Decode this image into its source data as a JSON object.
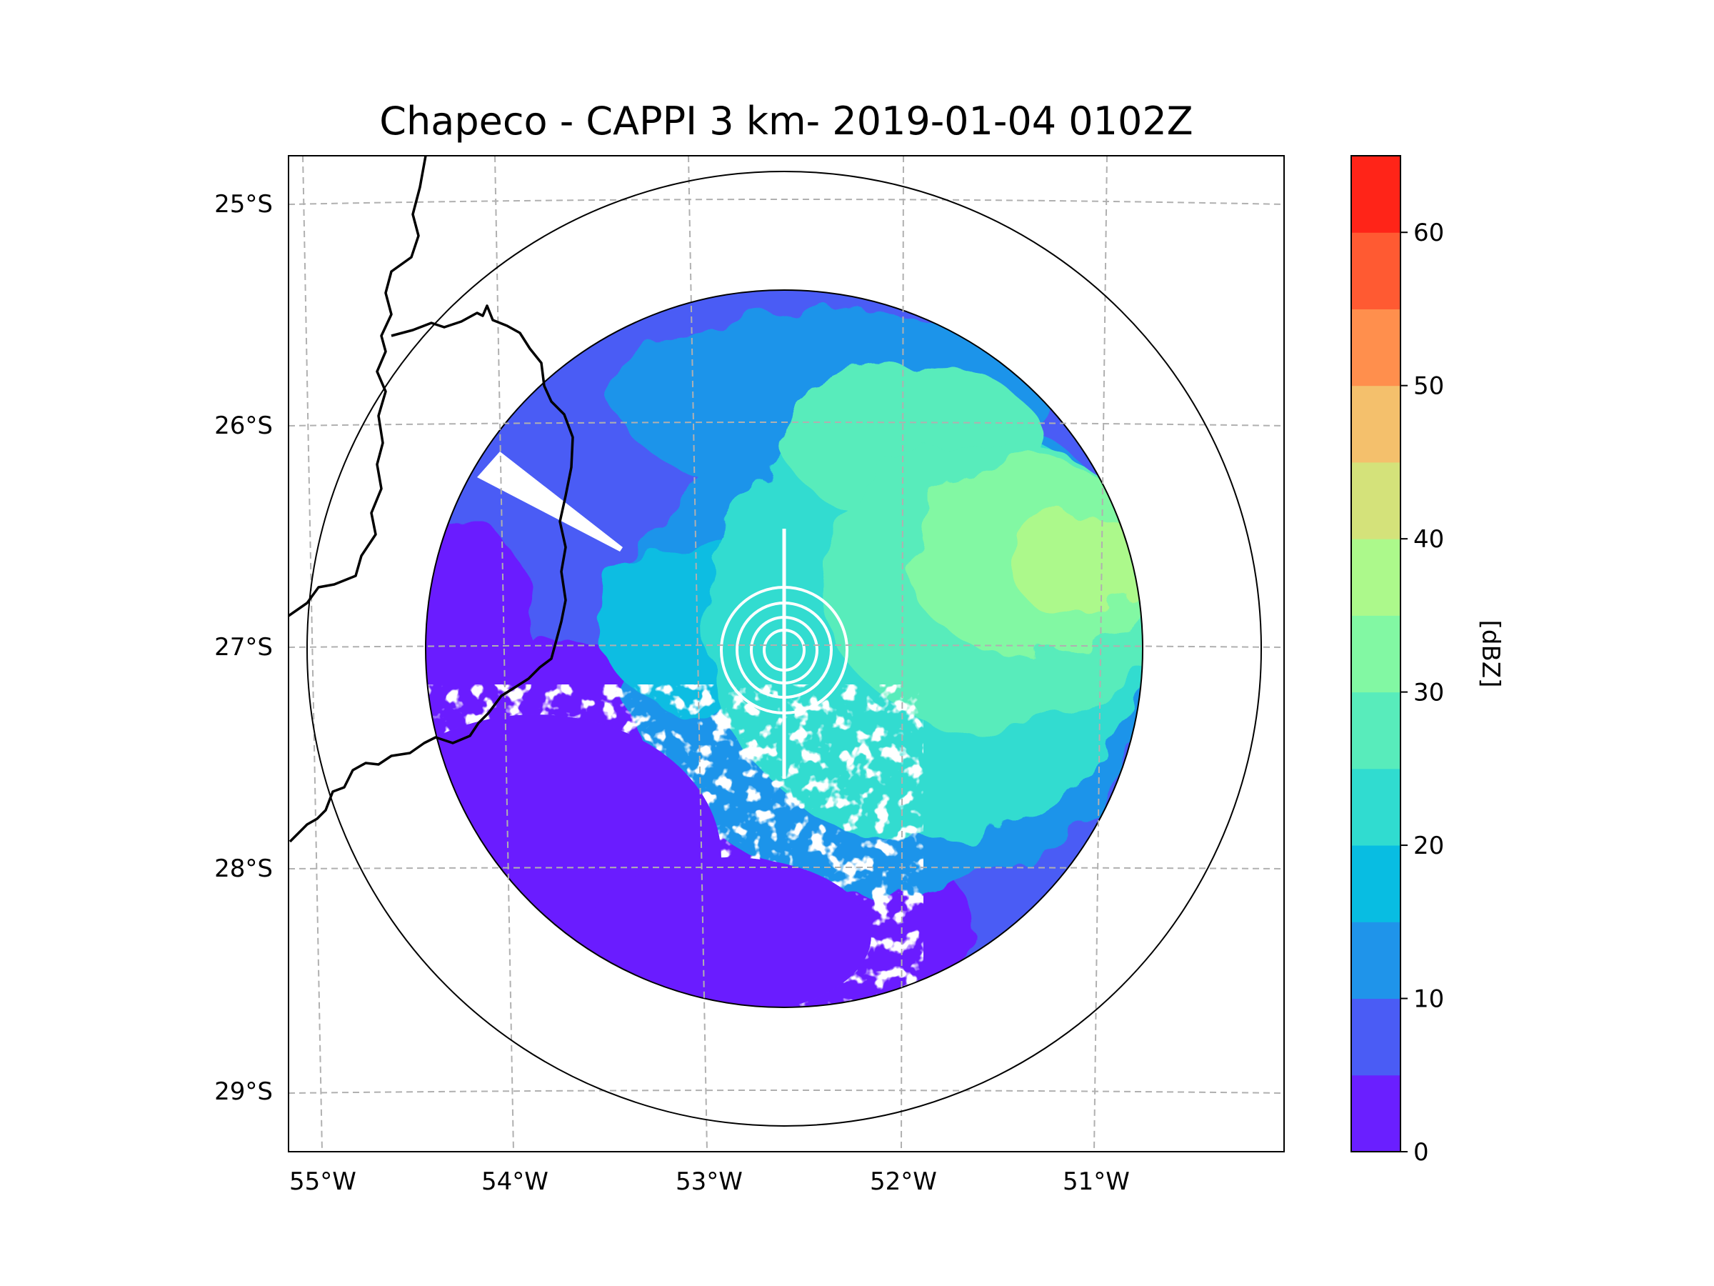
{
  "chart_data": {
    "type": "radar_map",
    "title": "Chapeco - CAPPI 3 km- 2019-01-04 0102Z",
    "projection": "lat-lon map with dashed graticule",
    "extent": {
      "lon": [
        -55.18,
        -50.05
      ],
      "lat": [
        -29.28,
        -24.78
      ]
    },
    "x_ticks": [
      {
        "value": -55,
        "label": "55°W"
      },
      {
        "value": -54,
        "label": "54°W"
      },
      {
        "value": -53,
        "label": "53°W"
      },
      {
        "value": -52,
        "label": "52°W"
      },
      {
        "value": -51,
        "label": "51°W"
      }
    ],
    "y_ticks": [
      {
        "value": -25,
        "label": "25°S"
      },
      {
        "value": -26,
        "label": "26°S"
      },
      {
        "value": -27,
        "label": "27°S"
      },
      {
        "value": -28,
        "label": "28°S"
      },
      {
        "value": -29,
        "label": "29°S"
      }
    ],
    "radar_site": {
      "name": "Chapeco",
      "lon": -52.6,
      "lat": -27.03
    },
    "range_rings_deg": [
      1.85,
      2.47
    ],
    "product": "CAPPI 3 km",
    "datetime": "2019-01-04 0102Z",
    "colorbar": {
      "label": "[dBZ]",
      "min": 0,
      "max": 65,
      "step": 5,
      "tick_values": [
        0,
        10,
        20,
        30,
        40,
        50,
        60
      ],
      "tick_labels": [
        "0",
        "10",
        "20",
        "30",
        "40",
        "50",
        "60"
      ],
      "colors": [
        "#6a1fff",
        "#4a5cf5",
        "#1f94ea",
        "#08bde2",
        "#30dcd0",
        "#58ecbb",
        "#82f8a3",
        "#acf98b",
        "#d4e27a",
        "#f4c06c",
        "#ff8f4d",
        "#ff5a32",
        "#ff2418"
      ]
    },
    "reflectivity_summary": [
      {
        "region": "south-west / south",
        "dbz_range": [
          0,
          8
        ]
      },
      {
        "region": "west",
        "dbz_range": [
          5,
          12
        ]
      },
      {
        "region": "north",
        "dbz_range": [
          8,
          22
        ]
      },
      {
        "region": "center / east",
        "dbz_range": [
          20,
          38
        ]
      },
      {
        "region": "east peak",
        "dbz_range": [
          35,
          40
        ]
      }
    ],
    "boundaries": "black border lines in the west (Argentina / Brazil)"
  }
}
